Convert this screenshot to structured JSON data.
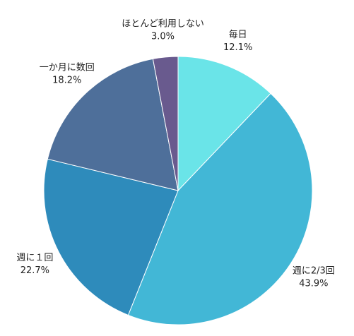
{
  "chart_data": {
    "type": "pie",
    "categories": [
      "毎日",
      "週に2/3回",
      "週に１回",
      "一か月に数回",
      "ほとんど利用しない"
    ],
    "values": [
      12.1,
      43.9,
      22.7,
      18.2,
      3.0
    ],
    "value_labels": [
      "12.1%",
      "43.9%",
      "22.7%",
      "18.2%",
      "3.0%"
    ],
    "colors": [
      "#6ae4e8",
      "#42b7d6",
      "#2e8bbb",
      "#4e6f9a",
      "#695a8e"
    ]
  }
}
